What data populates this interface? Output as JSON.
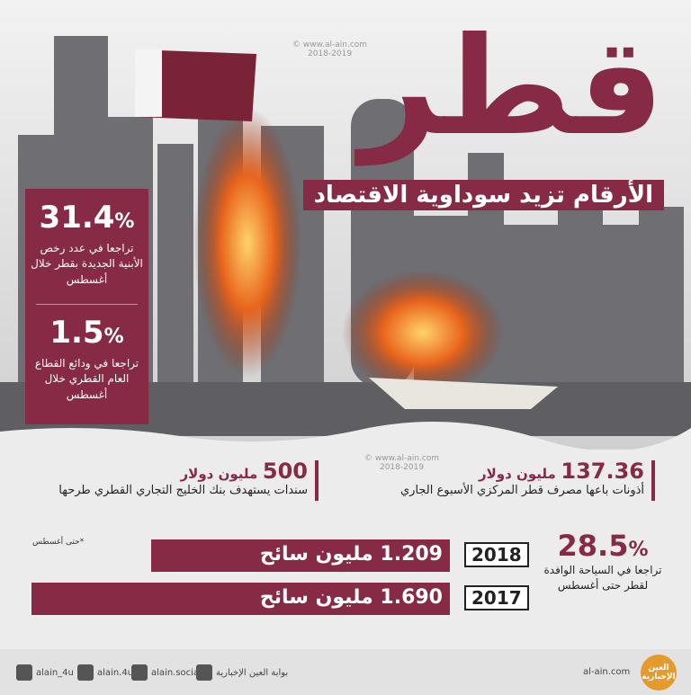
{
  "header": {
    "title": "قطر",
    "subtitle": "الأرقام تزيد سوداوية الاقتصاد"
  },
  "watermark": {
    "site": "© www.al-ain.com",
    "years": "2018-2019"
  },
  "left_stats": [
    {
      "value": 31.4,
      "unit": "%",
      "description": "تراجعا في عدد رخص الأبنية الجديدة بقطر خلال أغسطس"
    },
    {
      "value": 1.5,
      "unit": "%",
      "description": "تراجعا في ودائع القطاع العام القطري خلال أغسطس"
    }
  ],
  "middle_stats": [
    {
      "value": 137.36,
      "unit": "مليون دولار",
      "description": "أذونات باعها مصرف قطر المركزي الأسبوع الجاري"
    },
    {
      "value": 500,
      "unit": "مليون دولار",
      "description": "سندات يستهدف بنك الخليج التجاري القطري طرحها"
    }
  ],
  "tourism": {
    "value": 28.5,
    "unit": "%",
    "description": "تراجعا في السياحة الوافدة لقطر حتى أغسطس",
    "note": "*حتى أغسطس"
  },
  "visitors": {
    "years": [
      "2018",
      "2017"
    ],
    "values": [
      1.209,
      1.69
    ],
    "value_labels": [
      "1.209",
      "1.690"
    ],
    "unit": "مليون سائح"
  },
  "footer": {
    "twitter": "alain_4u",
    "instagram": "alain.4u",
    "facebook": "alain.social",
    "youtube": "بوابة العين الإخبارية",
    "website": "al-ain.com",
    "logo": "العين الإخبارية"
  }
}
